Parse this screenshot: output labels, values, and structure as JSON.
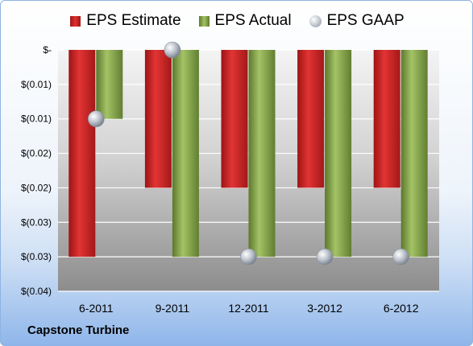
{
  "chart_data": {
    "type": "bar",
    "categories": [
      "6-2011",
      "9-2011",
      "12-2011",
      "3-2012",
      "6-2012"
    ],
    "series": [
      {
        "name": "EPS Estimate",
        "kind": "bar",
        "color": "#d42a2a",
        "values": [
          -0.03,
          -0.02,
          -0.02,
          -0.02,
          -0.02
        ]
      },
      {
        "name": "EPS Actual",
        "kind": "bar",
        "color": "#8fb050",
        "values": [
          -0.01,
          -0.03,
          -0.03,
          -0.03,
          -0.03
        ]
      },
      {
        "name": "EPS GAAP",
        "kind": "marker",
        "color": "#b8bec8",
        "values": [
          -0.01,
          0.0,
          -0.03,
          -0.03,
          -0.03
        ]
      }
    ],
    "y_ticks": [
      {
        "value": 0.0,
        "label": "$-"
      },
      {
        "value": -0.005,
        "label": "$(0.01)"
      },
      {
        "value": -0.01,
        "label": "$(0.01)"
      },
      {
        "value": -0.015,
        "label": "$(0.02)"
      },
      {
        "value": -0.02,
        "label": "$(0.02)"
      },
      {
        "value": -0.025,
        "label": "$(0.03)"
      },
      {
        "value": -0.03,
        "label": "$(0.03)"
      },
      {
        "value": -0.035,
        "label": "$(0.04)"
      }
    ],
    "ylim": [
      -0.035,
      0.0
    ],
    "grid": true,
    "legend_position": "top"
  },
  "legend": [
    {
      "label": "EPS Estimate",
      "icon": "red-bar-swatch"
    },
    {
      "label": "EPS Actual",
      "icon": "green-bar-swatch"
    },
    {
      "label": "EPS GAAP",
      "icon": "gray-sphere-swatch"
    }
  ],
  "company_name": "Capstone Turbine"
}
